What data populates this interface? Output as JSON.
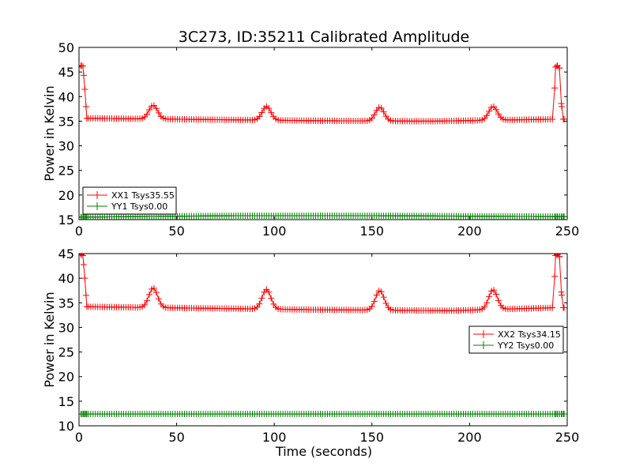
{
  "title": "3C273, ID:35211 Calibrated Amplitude",
  "colors": {
    "xx": "#ff0000",
    "yy": "#008000"
  },
  "chart_data": [
    {
      "type": "line",
      "ylabel": "Power in Kelvin",
      "xlim": [
        0,
        250
      ],
      "ylim": [
        15,
        50
      ],
      "x_ticks": [
        "0",
        "50",
        "100",
        "150",
        "200",
        "250"
      ],
      "y_ticks": [
        "15",
        "20",
        "25",
        "30",
        "35",
        "40",
        "45",
        "50"
      ],
      "legend_position": "lower-left",
      "series": [
        {
          "name": "XX1 Tsys35.55",
          "color": "#ff0000",
          "marker": "+",
          "baseline": 35.4,
          "peaks": [
            {
              "x": 38,
              "y": 38.2
            },
            {
              "x": 96,
              "y": 38.2
            },
            {
              "x": 154,
              "y": 38.2
            },
            {
              "x": 212,
              "y": 38.2
            }
          ],
          "points": [
            [
              0,
              46
            ],
            [
              1,
              46.3
            ],
            [
              2,
              46.2
            ],
            [
              3,
              41.5
            ],
            [
              4,
              35.6
            ],
            [
              120,
              35.1
            ],
            [
              180,
              35.0
            ],
            [
              243,
              35.4
            ],
            [
              244,
              46
            ],
            [
              245,
              46.3
            ],
            [
              246,
              45.8
            ],
            [
              247,
              38.6
            ],
            [
              248,
              35.4
            ],
            [
              249,
              35.4
            ]
          ]
        },
        {
          "name": "YY1 Tsys0.00",
          "color": "#008000",
          "marker": "+",
          "baseline": 15.6,
          "points": [
            [
              0,
              15.5
            ],
            [
              80,
              15.8
            ],
            [
              150,
              15.8
            ],
            [
              249,
              15.6
            ]
          ]
        }
      ]
    },
    {
      "type": "line",
      "xlabel": "Time (seconds)",
      "ylabel": "Power in Kelvin",
      "xlim": [
        0,
        250
      ],
      "ylim": [
        10,
        45
      ],
      "x_ticks": [
        "0",
        "50",
        "100",
        "150",
        "200",
        "250"
      ],
      "y_ticks": [
        "10",
        "15",
        "20",
        "25",
        "30",
        "35",
        "40",
        "45"
      ],
      "legend_position": "center-right",
      "series": [
        {
          "name": "XX2 Tsys34.15",
          "color": "#ff0000",
          "marker": "+",
          "baseline": 34.0,
          "peaks": [
            {
              "x": 38,
              "y": 38.0
            },
            {
              "x": 96,
              "y": 38.0
            },
            {
              "x": 154,
              "y": 38.0
            },
            {
              "x": 212,
              "y": 38.0
            }
          ],
          "points": [
            [
              0,
              44.8
            ],
            [
              1,
              44.8
            ],
            [
              2,
              44.6
            ],
            [
              3,
              40.0
            ],
            [
              4,
              34.2
            ],
            [
              120,
              33.6
            ],
            [
              190,
              33.4
            ],
            [
              243,
              34.0
            ],
            [
              244,
              44.6
            ],
            [
              245,
              44.8
            ],
            [
              246,
              44.4
            ],
            [
              247,
              37.2
            ],
            [
              248,
              34.0
            ],
            [
              249,
              34.0
            ]
          ]
        },
        {
          "name": "YY2 Tsys0.00",
          "color": "#008000",
          "marker": "+",
          "baseline": 12.4,
          "points": [
            [
              0,
              12.4
            ],
            [
              249,
              12.4
            ]
          ]
        }
      ]
    }
  ]
}
